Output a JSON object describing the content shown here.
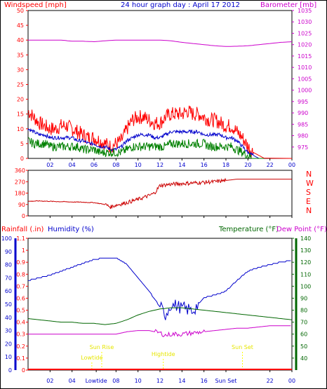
{
  "chart_data": [
    {
      "type": "line",
      "title": "24 hour graph day : April 17 2012",
      "ylabel": "Windspeed [mph]",
      "y2label": "Barometer [mb]",
      "ylim": [
        0,
        50
      ],
      "y2lim": [
        970,
        1035
      ],
      "xlim": [
        0,
        24
      ],
      "x_ticks": [
        "02",
        "04",
        "06",
        "08",
        "10",
        "12",
        "14",
        "16",
        "18",
        "20",
        "22",
        "00"
      ],
      "y_ticks": [
        0,
        5,
        10,
        15,
        20,
        25,
        30,
        35,
        40,
        45,
        50
      ],
      "y2_ticks": [
        975,
        980,
        985,
        990,
        995,
        1000,
        1005,
        1010,
        1015,
        1020,
        1025,
        1030,
        1035
      ],
      "colors": {
        "gust": "#ff0000",
        "avg": "#0000cc",
        "speed": "#008000",
        "barometer": "#cc00cc"
      },
      "series": [
        {
          "key": "gust",
          "axis": "left",
          "x": [
            0,
            0.5,
            1,
            1.5,
            2,
            2.5,
            3,
            3.5,
            4,
            4.5,
            5,
            5.5,
            6,
            6.5,
            7,
            7.5,
            8,
            8.5,
            9,
            9.5,
            10,
            10.5,
            11,
            11.5,
            12,
            12.5,
            13,
            13.5,
            14,
            14.5,
            15,
            15.5,
            16,
            16.5,
            17,
            17.5,
            18,
            18.5,
            19,
            19.5,
            20,
            20.5,
            21,
            21.5,
            22,
            22.5,
            23,
            23.5,
            24
          ],
          "values": [
            16,
            14,
            12,
            11,
            10,
            10,
            11,
            11,
            10,
            9,
            8,
            7,
            7,
            6,
            5,
            4,
            5,
            6,
            10,
            13,
            14,
            14,
            13,
            12,
            12,
            14,
            15,
            15,
            15,
            16,
            15,
            15,
            14,
            13,
            13,
            12,
            11,
            11,
            9,
            7,
            4,
            2,
            1,
            0,
            0,
            0,
            0,
            0,
            0
          ]
        },
        {
          "key": "avg",
          "axis": "left",
          "x": [
            0,
            0.5,
            1,
            1.5,
            2,
            2.5,
            3,
            3.5,
            4,
            4.5,
            5,
            5.5,
            6,
            6.5,
            7,
            7.5,
            8,
            8.5,
            9,
            9.5,
            10,
            10.5,
            11,
            11.5,
            12,
            12.5,
            13,
            13.5,
            14,
            14.5,
            15,
            15.5,
            16,
            16.5,
            17,
            17.5,
            18,
            18.5,
            19,
            19.5,
            20,
            20.5,
            21,
            21.5,
            22,
            22.5,
            23,
            23.5,
            24
          ],
          "values": [
            10,
            9,
            8,
            8,
            7,
            7,
            7,
            7,
            7,
            6,
            6,
            5,
            5,
            4,
            4,
            3,
            3,
            4,
            6,
            7,
            8,
            8,
            8,
            7,
            7,
            8,
            9,
            9,
            9,
            9,
            9,
            9,
            8,
            8,
            8,
            8,
            7,
            7,
            6,
            4,
            2,
            1,
            0,
            0,
            0,
            0,
            0,
            0,
            0
          ]
        },
        {
          "key": "speed",
          "axis": "left",
          "x": [
            0,
            0.5,
            1,
            1.5,
            2,
            2.5,
            3,
            3.5,
            4,
            4.5,
            5,
            5.5,
            6,
            6.5,
            7,
            7.5,
            8,
            8.5,
            9,
            9.5,
            10,
            10.5,
            11,
            11.5,
            12,
            12.5,
            13,
            13.5,
            14,
            14.5,
            15,
            15.5,
            16,
            16.5,
            17,
            17.5,
            18,
            18.5,
            19,
            19.5,
            20,
            20.5,
            21,
            21.5,
            22,
            22.5,
            23,
            23.5,
            24
          ],
          "values": [
            6,
            5,
            5,
            5,
            4,
            4,
            4,
            4,
            4,
            4,
            3,
            3,
            3,
            2,
            2,
            2,
            2,
            2,
            3,
            4,
            4,
            4,
            4,
            4,
            4,
            4,
            5,
            5,
            5,
            5,
            5,
            5,
            5,
            4,
            4,
            4,
            4,
            4,
            3,
            2,
            1,
            0,
            0,
            0,
            0,
            0,
            0,
            0,
            0
          ]
        },
        {
          "key": "barometer",
          "axis": "right",
          "x": [
            0,
            1,
            2,
            3,
            4,
            5,
            6,
            7,
            8,
            9,
            10,
            11,
            12,
            13,
            14,
            15,
            16,
            17,
            18,
            19,
            20,
            21,
            22,
            23,
            24
          ],
          "values": [
            1022,
            1022,
            1022,
            1022,
            1021.5,
            1021.5,
            1021.3,
            1021.7,
            1022,
            1022,
            1022,
            1022,
            1022,
            1021.7,
            1021,
            1020.5,
            1020,
            1019.5,
            1019.2,
            1019.3,
            1019.5,
            1020,
            1020.5,
            1021,
            1021.3
          ]
        }
      ]
    },
    {
      "type": "line",
      "ylim": [
        0,
        360
      ],
      "xlim": [
        0,
        24
      ],
      "x_ticks": [
        "02",
        "04",
        "06",
        "08",
        "10",
        "12",
        "14",
        "16",
        "18",
        "20",
        "22",
        "00"
      ],
      "y_ticks": [
        0,
        90,
        180,
        270,
        360
      ],
      "compass_labels": [
        "N",
        "W",
        "S",
        "E",
        "N"
      ],
      "colors": {
        "direction": "#cc0000"
      },
      "series": [
        {
          "key": "direction",
          "x": [
            0,
            1,
            2,
            3,
            4,
            5,
            6,
            7,
            7.5,
            8,
            8.5,
            9,
            10,
            11,
            11.5,
            12,
            12.5,
            13,
            14,
            15,
            16,
            17,
            18,
            19,
            20,
            21,
            22,
            23,
            24
          ],
          "values": [
            115,
            118,
            115,
            112,
            110,
            108,
            105,
            90,
            70,
            85,
            95,
            105,
            130,
            160,
            180,
            240,
            245,
            250,
            255,
            260,
            265,
            270,
            280,
            290,
            290,
            290,
            290,
            290,
            290
          ]
        }
      ]
    },
    {
      "type": "line",
      "legend": [
        "Rainfall (.in)",
        "Humidity (%)",
        "Temperature (°F)",
        "Dew Point (°F)"
      ],
      "ylim_rain": [
        0,
        1.1
      ],
      "ylim_humidity": [
        0,
        100
      ],
      "ylim_temp": [
        30,
        140
      ],
      "xlim": [
        0,
        24
      ],
      "x_ticks": [
        "02",
        "04",
        "Lowtide",
        "08",
        "10",
        "12",
        "14",
        "16",
        "Sun Set",
        "22",
        "00"
      ],
      "rain_ticks": [
        "0",
        "0.1",
        "0.2",
        "0.3",
        "0.4",
        "0.5",
        "0.6",
        "0.7",
        "0.8",
        "0.9",
        "1",
        "1.1"
      ],
      "humidity_ticks": [
        0,
        10,
        20,
        30,
        40,
        50,
        60,
        70,
        80,
        90,
        100
      ],
      "temp_ticks": [
        40,
        50,
        60,
        70,
        80,
        90,
        100,
        110,
        120,
        130,
        140
      ],
      "annotations": [
        "Sun Rise",
        "Lowtide",
        "Hightide",
        "Sun Set"
      ],
      "colors": {
        "humidity": "#0000cc",
        "temperature": "#006600",
        "dewpoint": "#cc00cc",
        "rainfall": "#ff0000",
        "annotation": "#ffff00"
      },
      "series": [
        {
          "key": "humidity",
          "axis": "humidity",
          "x": [
            0,
            1,
            2,
            3,
            4,
            5,
            6,
            7,
            8,
            9,
            10,
            11,
            12,
            12.5,
            13,
            14,
            15,
            16,
            17,
            18,
            19,
            20,
            21,
            22,
            23,
            24
          ],
          "values": [
            68,
            70,
            72,
            75,
            78,
            81,
            84,
            85,
            85,
            80,
            70,
            60,
            48,
            42,
            50,
            47,
            45,
            55,
            57,
            60,
            68,
            75,
            78,
            80,
            82,
            83
          ]
        },
        {
          "key": "temperature",
          "axis": "temp",
          "x": [
            0,
            1,
            2,
            3,
            4,
            5,
            6,
            7,
            8,
            9,
            10,
            11,
            12,
            13,
            14,
            15,
            16,
            17,
            18,
            19,
            20,
            21,
            22,
            23,
            24
          ],
          "values": [
            73,
            72,
            71,
            70,
            70,
            69,
            69,
            68,
            69,
            72,
            76,
            79,
            81,
            82,
            82,
            81,
            80,
            79,
            78,
            77,
            76,
            75,
            74,
            73,
            72
          ]
        },
        {
          "key": "dewpoint",
          "axis": "temp",
          "x": [
            0,
            1,
            2,
            3,
            4,
            5,
            6,
            7,
            8,
            9,
            10,
            11,
            12,
            12.5,
            13,
            14,
            15,
            16,
            17,
            18,
            19,
            20,
            21,
            22,
            23,
            24
          ],
          "values": [
            60,
            60,
            60,
            60,
            60,
            60,
            60,
            60,
            60,
            62,
            63,
            63,
            61,
            59,
            60,
            60,
            61,
            62,
            63,
            64,
            65,
            65,
            66,
            67,
            67,
            67
          ]
        },
        {
          "key": "rainfall",
          "axis": "rain",
          "x": [
            0,
            24
          ],
          "values": [
            0,
            0
          ]
        }
      ]
    }
  ],
  "labels": {
    "windspeed": "Windspeed [mph]",
    "title": "24 hour graph day : April 17 2012",
    "barometer": "Barometer [mb]",
    "rainfall": "Rainfall (.in)",
    "humidity": "Humidity (%)",
    "temperature": "Temperature (°F)",
    "dewpoint": "Dew Point (°F)",
    "sunrise": "Sun Rise",
    "lowtide": "Lowtide",
    "hightide": "Hightide",
    "sunset": "Sun Set"
  }
}
